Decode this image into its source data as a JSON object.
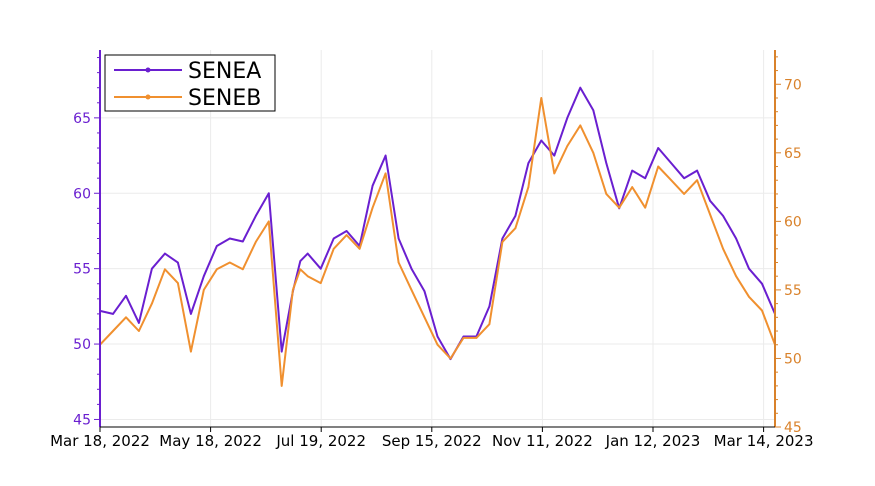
{
  "chart_data": {
    "type": "line",
    "title": "",
    "xlabel": "",
    "ylabel": "",
    "ylabel_right": "",
    "x_tick_labels": [
      "Mar 18, 2022",
      "May 18, 2022",
      "Jul 19, 2022",
      "Sep 15, 2022",
      "Nov 11, 2022",
      "Jan 12, 2023",
      "Mar 14, 2023"
    ],
    "x_range": [
      "2022-03-18",
      "2023-03-17"
    ],
    "left_axis": {
      "ylim": [
        44.5,
        69.5
      ],
      "ticks": [
        45,
        50,
        55,
        60,
        65
      ],
      "color": "#6a1fd0"
    },
    "right_axis": {
      "ylim": [
        45,
        72.5
      ],
      "ticks": [
        45,
        50,
        55,
        60,
        65,
        70
      ],
      "color": "#d9822b"
    },
    "grid": true,
    "legend_position": "top-left",
    "series": [
      {
        "name": "SENEA",
        "axis": "left",
        "color": "#6a1fd0",
        "dates": [
          "2022-03-18",
          "2022-03-25",
          "2022-04-01",
          "2022-04-08",
          "2022-04-15",
          "2022-04-22",
          "2022-04-29",
          "2022-05-06",
          "2022-05-13",
          "2022-05-20",
          "2022-05-27",
          "2022-06-03",
          "2022-06-10",
          "2022-06-17",
          "2022-06-24",
          "2022-06-30",
          "2022-07-04",
          "2022-07-08",
          "2022-07-15",
          "2022-07-22",
          "2022-07-29",
          "2022-08-05",
          "2022-08-12",
          "2022-08-19",
          "2022-08-26",
          "2022-09-02",
          "2022-09-09",
          "2022-09-16",
          "2022-09-23",
          "2022-09-30",
          "2022-10-07",
          "2022-10-14",
          "2022-10-21",
          "2022-10-28",
          "2022-11-04",
          "2022-11-11",
          "2022-11-18",
          "2022-11-25",
          "2022-12-02",
          "2022-12-09",
          "2022-12-16",
          "2022-12-23",
          "2022-12-30",
          "2023-01-06",
          "2023-01-13",
          "2023-01-20",
          "2023-01-27",
          "2023-02-03",
          "2023-02-10",
          "2023-02-17",
          "2023-02-24",
          "2023-03-03",
          "2023-03-10",
          "2023-03-17"
        ],
        "values": [
          52.2,
          52.0,
          53.2,
          51.4,
          55.0,
          56.0,
          55.4,
          52.0,
          54.5,
          56.5,
          57.0,
          56.8,
          58.5,
          60.0,
          49.5,
          53.5,
          55.5,
          56.0,
          55.0,
          57.0,
          57.5,
          56.5,
          60.5,
          62.5,
          57.0,
          55.0,
          53.5,
          50.5,
          49.0,
          50.5,
          50.5,
          52.5,
          57.0,
          58.5,
          62.0,
          63.5,
          62.5,
          65.0,
          67.0,
          65.5,
          62.0,
          59.0,
          61.5,
          61.0,
          63.0,
          62.0,
          61.0,
          61.5,
          59.5,
          58.5,
          57.0,
          55.0,
          54.0,
          52.0
        ]
      },
      {
        "name": "SENEB",
        "axis": "right",
        "color": "#f0902f",
        "dates": [
          "2022-03-18",
          "2022-03-25",
          "2022-04-01",
          "2022-04-08",
          "2022-04-15",
          "2022-04-22",
          "2022-04-29",
          "2022-05-06",
          "2022-05-13",
          "2022-05-20",
          "2022-05-27",
          "2022-06-03",
          "2022-06-10",
          "2022-06-17",
          "2022-06-24",
          "2022-06-30",
          "2022-07-04",
          "2022-07-08",
          "2022-07-15",
          "2022-07-22",
          "2022-07-29",
          "2022-08-05",
          "2022-08-12",
          "2022-08-19",
          "2022-08-26",
          "2022-09-02",
          "2022-09-09",
          "2022-09-16",
          "2022-09-23",
          "2022-09-30",
          "2022-10-07",
          "2022-10-14",
          "2022-10-21",
          "2022-10-28",
          "2022-11-04",
          "2022-11-11",
          "2022-11-18",
          "2022-11-25",
          "2022-12-02",
          "2022-12-09",
          "2022-12-16",
          "2022-12-23",
          "2022-12-30",
          "2023-01-06",
          "2023-01-13",
          "2023-01-20",
          "2023-01-27",
          "2023-02-03",
          "2023-02-10",
          "2023-02-17",
          "2023-02-24",
          "2023-03-03",
          "2023-03-10",
          "2023-03-17"
        ],
        "values": [
          51.0,
          52.0,
          53.0,
          52.0,
          54.0,
          56.5,
          55.5,
          50.5,
          55.0,
          56.5,
          57.0,
          56.5,
          58.5,
          60.0,
          48.0,
          55.0,
          56.5,
          56.0,
          55.5,
          58.0,
          59.0,
          58.0,
          61.0,
          63.5,
          57.0,
          55.0,
          53.0,
          51.0,
          50.0,
          51.5,
          51.5,
          52.5,
          58.5,
          59.5,
          62.5,
          69.0,
          63.5,
          65.5,
          67.0,
          65.0,
          62.0,
          61.0,
          62.5,
          61.0,
          64.0,
          63.0,
          62.0,
          63.0,
          60.5,
          58.0,
          56.0,
          54.5,
          53.5,
          51.0
        ]
      }
    ]
  }
}
